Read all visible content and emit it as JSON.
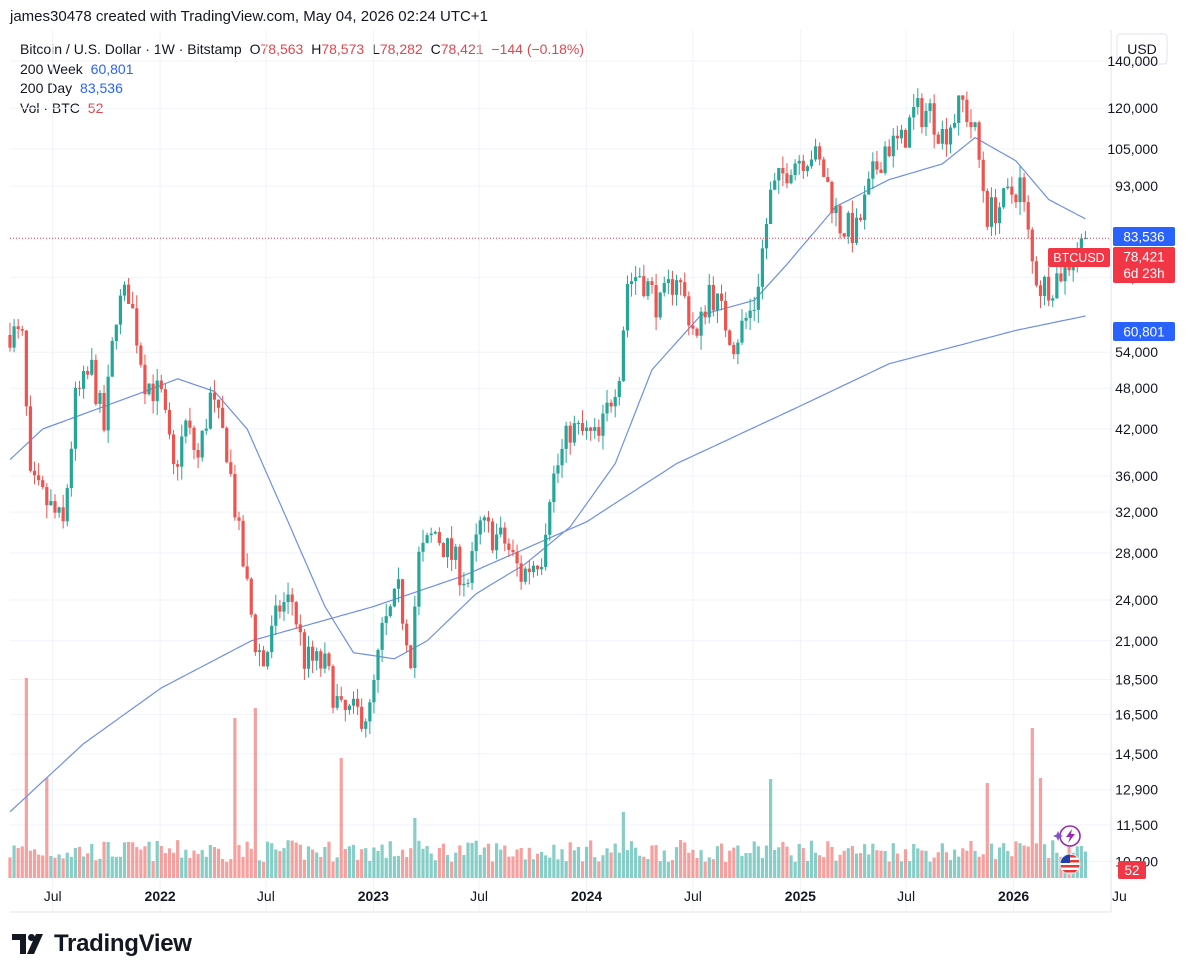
{
  "header": {
    "credit": "james30478 created with TradingView.com, May 04, 2026 02:24 UTC+1"
  },
  "legend": {
    "symbol": "Bitcoin / U.S. Dollar · 1W · Bitstamp",
    "o_label": "O",
    "o_value": "78,563",
    "h_label": "H",
    "h_value": "78,573",
    "l_label": "L",
    "l_value": "78,282",
    "c_label": "C",
    "c_value": "78,421",
    "change": "−144 (−0.18%)",
    "ma200w_label": "200 Week",
    "ma200w_value": "60,801",
    "ma200d_label": "200 Day",
    "ma200d_value": "83,536",
    "vol_label": "Vol · BTC",
    "vol_value": "52"
  },
  "price_scale": {
    "currency": "USD",
    "ticks": [
      "140,000",
      "120,000",
      "105,000",
      "93,000",
      "69,000",
      "54,000",
      "48,000",
      "42,000",
      "36,000",
      "32,000",
      "28,000",
      "24,000",
      "21,000",
      "18,500",
      "16,500",
      "14,500",
      "12,900",
      "11,500",
      "10,200"
    ]
  },
  "badges": {
    "ma200d": "83,536",
    "symbol": "BTCUSD",
    "price": "78,421",
    "countdown": "6d 23h",
    "ma200w": "60,801",
    "volume": "52"
  },
  "time_axis": {
    "labels": [
      "Jul",
      "2022",
      "Jul",
      "2023",
      "Jul",
      "2024",
      "Jul",
      "2025",
      "Jul",
      "2026",
      "Ju"
    ]
  },
  "colors": {
    "up": "#26a69a",
    "down": "#ef5350",
    "ma": "#6f8fe6",
    "badge_blue": "#2962ff",
    "badge_red": "#f23645"
  },
  "icons": [
    "lightning-icon",
    "us-flag-icon",
    "tradingview-logo-icon"
  ],
  "brand": {
    "name": "TradingView"
  },
  "chart_data": {
    "type": "candlestick",
    "title": "Bitcoin / U.S. Dollar · 1W · Bitstamp",
    "y_scale": "log",
    "ylim": [
      9600,
      155000
    ],
    "x_range": [
      "2021-04-19",
      "2026-06-15"
    ],
    "current_price": 78421,
    "anchors": [
      [
        "2021-04-19",
        58000
      ],
      [
        "2021-05-10",
        56000
      ],
      [
        "2021-05-24",
        35000
      ],
      [
        "2021-06-21",
        33000
      ],
      [
        "2021-07-19",
        30500
      ],
      [
        "2021-08-09",
        46000
      ],
      [
        "2021-09-06",
        51000
      ],
      [
        "2021-09-27",
        42000
      ],
      [
        "2021-10-18",
        62000
      ],
      [
        "2021-11-08",
        66000
      ],
      [
        "2021-12-06",
        49500
      ],
      [
        "2022-01-03",
        46500
      ],
      [
        "2022-01-24",
        36500
      ],
      [
        "2022-02-14",
        42500
      ],
      [
        "2022-03-07",
        38000
      ],
      [
        "2022-03-28",
        46500
      ],
      [
        "2022-04-25",
        39500
      ],
      [
        "2022-05-16",
        29500
      ],
      [
        "2022-06-13",
        21000
      ],
      [
        "2022-06-27",
        19500
      ],
      [
        "2022-07-25",
        23500
      ],
      [
        "2022-08-15",
        24000
      ],
      [
        "2022-09-05",
        19800
      ],
      [
        "2022-10-10",
        19300
      ],
      [
        "2022-11-07",
        16500
      ],
      [
        "2022-12-26",
        16600
      ],
      [
        "2023-01-16",
        21500
      ],
      [
        "2023-02-13",
        24500
      ],
      [
        "2023-03-06",
        20200
      ],
      [
        "2023-03-20",
        27500
      ],
      [
        "2023-04-17",
        30000
      ],
      [
        "2023-06-12",
        25500
      ],
      [
        "2023-07-03",
        30500
      ],
      [
        "2023-08-14",
        29000
      ],
      [
        "2023-09-11",
        26000
      ],
      [
        "2023-10-16",
        28000
      ],
      [
        "2023-10-30",
        34500
      ],
      [
        "2023-12-04",
        42000
      ],
      [
        "2024-01-22",
        40500
      ],
      [
        "2024-02-26",
        51500
      ],
      [
        "2024-03-11",
        68000
      ],
      [
        "2024-04-01",
        70000
      ],
      [
        "2024-05-06",
        62500
      ],
      [
        "2024-06-03",
        70000
      ],
      [
        "2024-07-08",
        56000
      ],
      [
        "2024-07-29",
        67000
      ],
      [
        "2024-09-09",
        56000
      ],
      [
        "2024-10-14",
        63000
      ],
      [
        "2024-11-11",
        90000
      ],
      [
        "2024-12-16",
        101000
      ],
      [
        "2025-01-20",
        104000
      ],
      [
        "2025-02-10",
        97000
      ],
      [
        "2025-03-10",
        82000
      ],
      [
        "2025-04-07",
        80000
      ],
      [
        "2025-05-05",
        96000
      ],
      [
        "2025-05-26",
        106000
      ],
      [
        "2025-06-23",
        107000
      ],
      [
        "2025-07-14",
        118000
      ],
      [
        "2025-08-11",
        119000
      ],
      [
        "2025-09-01",
        110000
      ],
      [
        "2025-10-06",
        122000
      ],
      [
        "2025-10-27",
        110000
      ],
      [
        "2025-11-17",
        85000
      ],
      [
        "2025-12-15",
        88000
      ],
      [
        "2026-01-12",
        94000
      ],
      [
        "2026-02-02",
        72000
      ],
      [
        "2026-02-16",
        67000
      ],
      [
        "2026-03-09",
        68000
      ],
      [
        "2026-04-13",
        74000
      ],
      [
        "2026-05-04",
        78421
      ]
    ],
    "ma200w": [
      [
        "2021-04-19",
        12000
      ],
      [
        "2021-08-23",
        15000
      ],
      [
        "2022-01-03",
        18000
      ],
      [
        "2022-06-06",
        21000
      ],
      [
        "2023-01-02",
        23500
      ],
      [
        "2023-06-05",
        26000
      ],
      [
        "2024-01-01",
        31000
      ],
      [
        "2024-06-03",
        37500
      ],
      [
        "2025-01-06",
        45500
      ],
      [
        "2025-06-02",
        52000
      ],
      [
        "2026-01-05",
        58000
      ],
      [
        "2026-05-04",
        60801
      ]
    ],
    "ma200d": [
      [
        "2021-04-19",
        38000
      ],
      [
        "2021-06-14",
        42000
      ],
      [
        "2021-09-20",
        45000
      ],
      [
        "2021-12-06",
        47500
      ],
      [
        "2022-01-31",
        49500
      ],
      [
        "2022-04-04",
        47500
      ],
      [
        "2022-05-30",
        42000
      ],
      [
        "2022-08-08",
        31000
      ],
      [
        "2022-10-10",
        23500
      ],
      [
        "2022-11-28",
        20200
      ],
      [
        "2023-02-06",
        19800
      ],
      [
        "2023-04-03",
        21000
      ],
      [
        "2023-06-26",
        24500
      ],
      [
        "2023-09-18",
        27000
      ],
      [
        "2023-12-04",
        30500
      ],
      [
        "2024-02-19",
        37500
      ],
      [
        "2024-04-22",
        51000
      ],
      [
        "2024-07-15",
        61000
      ],
      [
        "2024-10-14",
        64000
      ],
      [
        "2024-12-09",
        72000
      ],
      [
        "2025-03-03",
        87000
      ],
      [
        "2025-06-02",
        95000
      ],
      [
        "2025-09-01",
        100000
      ],
      [
        "2025-10-27",
        109000
      ],
      [
        "2026-01-05",
        101000
      ],
      [
        "2026-03-02",
        89000
      ],
      [
        "2026-05-04",
        83536
      ]
    ],
    "volume_spikes": [
      [
        "2021-05-17",
        20000
      ],
      [
        "2021-06-21",
        10000
      ],
      [
        "2022-05-09",
        16000
      ],
      [
        "2022-06-13",
        17000
      ],
      [
        "2022-11-07",
        12000
      ],
      [
        "2023-03-13",
        6000
      ],
      [
        "2024-03-04",
        6600
      ],
      [
        "2024-11-11",
        9900
      ],
      [
        "2025-11-17",
        9500
      ],
      [
        "2026-02-02",
        15000
      ],
      [
        "2026-02-16",
        10000
      ]
    ],
    "legend": [
      {
        "name": "200 Week",
        "value": 60801
      },
      {
        "name": "200 Day",
        "value": 83536
      },
      {
        "name": "Vol · BTC",
        "value": 52
      }
    ]
  }
}
